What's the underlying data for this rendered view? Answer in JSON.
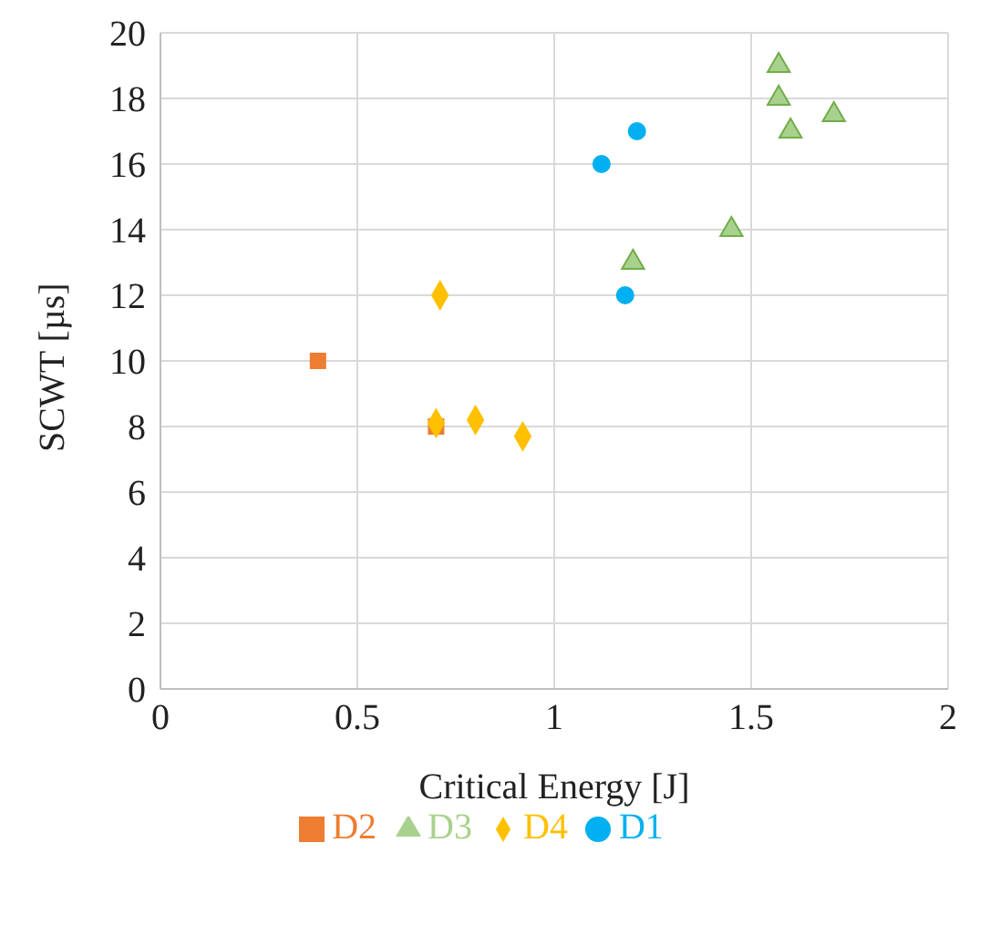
{
  "chart_data": {
    "type": "scatter",
    "xlabel": "Critical Energy [J]",
    "ylabel": "SCWT [µs]",
    "xlim": [
      0,
      2
    ],
    "xticks": [
      0,
      0.5,
      1,
      1.5,
      2
    ],
    "ylim": [
      0,
      20
    ],
    "yticks": [
      0,
      2,
      4,
      6,
      8,
      10,
      12,
      14,
      16,
      18,
      20
    ],
    "grid": true,
    "legend": "bottom",
    "series": [
      {
        "name": "D2",
        "color": "#ed7d31",
        "marker": "square",
        "x": [
          0.4,
          0.7
        ],
        "values": [
          10,
          8
        ]
      },
      {
        "name": "D3",
        "color": "#a9d18e",
        "marker": "triangle",
        "x": [
          1.57,
          1.57,
          1.6,
          1.71,
          1.45,
          1.2
        ],
        "values": [
          19,
          18,
          17,
          17.5,
          14,
          13
        ]
      },
      {
        "name": "D4",
        "color": "#ffc000",
        "marker": "diamond",
        "x": [
          0.71,
          0.7,
          0.8,
          0.92
        ],
        "values": [
          12,
          8.1,
          8.2,
          7.7
        ]
      },
      {
        "name": "D1",
        "color": "#00b0f0",
        "marker": "circle",
        "x": [
          1.12,
          1.21,
          1.18
        ],
        "values": [
          16,
          17,
          12
        ]
      }
    ]
  }
}
